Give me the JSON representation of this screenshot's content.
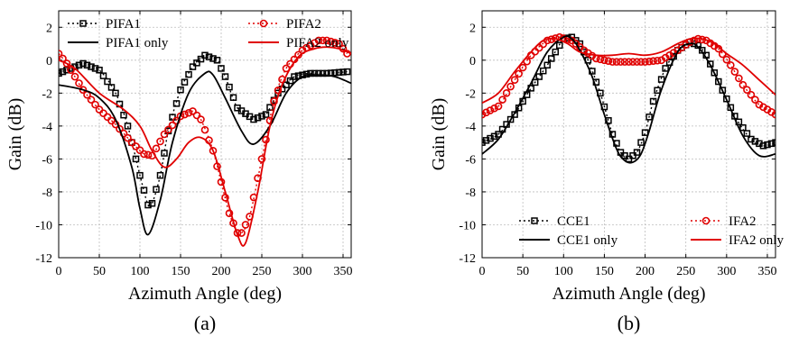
{
  "chart_data": [
    {
      "id": "a",
      "type": "line",
      "caption": "(a)",
      "xlabel": "Azimuth Angle (deg)",
      "ylabel": "Gain (dB)",
      "xlim": [
        0,
        360
      ],
      "ylim": [
        -12,
        3
      ],
      "xticks": [
        0,
        50,
        100,
        150,
        200,
        250,
        300,
        350
      ],
      "yticks": [
        -12,
        -10,
        -8,
        -6,
        -4,
        -2,
        0,
        2
      ],
      "grid": true,
      "legend_position": "top",
      "series": [
        {
          "name": "PIFA1",
          "color": "#000000",
          "line": "dotted",
          "marker": "square",
          "x": [
            0,
            30,
            50,
            70,
            85,
            100,
            110,
            115,
            125,
            135,
            150,
            165,
            180,
            195,
            205,
            220,
            240,
            255,
            270,
            290,
            310,
            330,
            355
          ],
          "y": [
            -0.8,
            -0.2,
            -0.6,
            -2.0,
            -4.0,
            -7.0,
            -8.8,
            -8.7,
            -7.0,
            -4.3,
            -1.8,
            -0.4,
            0.3,
            0.0,
            -1.0,
            -2.9,
            -3.6,
            -3.3,
            -2.0,
            -1.0,
            -0.8,
            -0.8,
            -0.7
          ]
        },
        {
          "name": "PIFA2",
          "color": "#e00000",
          "line": "dotted",
          "marker": "circle",
          "x": [
            0,
            10,
            20,
            30,
            50,
            70,
            90,
            105,
            115,
            130,
            150,
            165,
            175,
            190,
            200,
            210,
            220,
            225,
            235,
            250,
            265,
            280,
            300,
            320,
            330,
            345,
            355
          ],
          "y": [
            0.4,
            -0.2,
            -1.0,
            -1.8,
            -3.0,
            -3.9,
            -5.0,
            -5.7,
            -5.8,
            -4.5,
            -3.4,
            -3.1,
            -3.6,
            -5.5,
            -7.4,
            -9.3,
            -10.5,
            -10.5,
            -9.5,
            -6.0,
            -2.5,
            -0.5,
            0.6,
            1.2,
            1.2,
            1.0,
            0.4
          ]
        },
        {
          "name": "PIFA1 only",
          "color": "#000000",
          "line": "solid",
          "marker": "none",
          "x": [
            0,
            30,
            50,
            70,
            90,
            100,
            110,
            125,
            140,
            160,
            180,
            190,
            205,
            225,
            240,
            260,
            280,
            300,
            320,
            340,
            360
          ],
          "y": [
            -1.5,
            -1.8,
            -2.3,
            -3.6,
            -6.5,
            -9.0,
            -10.6,
            -8.5,
            -5.0,
            -2.0,
            -0.8,
            -0.9,
            -2.3,
            -4.3,
            -5.1,
            -4.0,
            -2.0,
            -1.0,
            -0.9,
            -1.0,
            -1.4
          ]
        },
        {
          "name": "PIFA2 only",
          "color": "#e00000",
          "line": "solid",
          "marker": "none",
          "x": [
            0,
            20,
            50,
            80,
            100,
            115,
            130,
            145,
            160,
            175,
            190,
            205,
            220,
            230,
            245,
            260,
            275,
            295,
            315,
            330,
            345,
            360
          ],
          "y": [
            0.0,
            -0.5,
            -2.0,
            -3.0,
            -4.0,
            -5.5,
            -6.5,
            -6.0,
            -5.0,
            -4.7,
            -5.5,
            -8.0,
            -10.6,
            -11.1,
            -8.0,
            -4.0,
            -1.5,
            0.2,
            0.7,
            0.8,
            0.7,
            0.4
          ]
        }
      ]
    },
    {
      "id": "b",
      "type": "line",
      "caption": "(b)",
      "xlabel": "Azimuth Angle (deg)",
      "ylabel": "Gain (dB)",
      "xlim": [
        0,
        360
      ],
      "ylim": [
        -12,
        3
      ],
      "xticks": [
        0,
        50,
        100,
        150,
        200,
        250,
        300,
        350
      ],
      "yticks": [
        -12,
        -10,
        -8,
        -6,
        -4,
        -2,
        0,
        2
      ],
      "grid": true,
      "legend_position": "bottom",
      "series": [
        {
          "name": "CCE1",
          "color": "#000000",
          "line": "dotted",
          "marker": "square",
          "x": [
            0,
            20,
            40,
            60,
            80,
            100,
            110,
            120,
            130,
            145,
            160,
            170,
            180,
            190,
            200,
            210,
            225,
            240,
            255,
            265,
            275,
            290,
            310,
            330,
            345,
            360
          ],
          "y": [
            -5.0,
            -4.5,
            -3.3,
            -1.7,
            -0.3,
            1.3,
            1.4,
            1.0,
            0.0,
            -2.0,
            -4.5,
            -5.6,
            -6.0,
            -5.6,
            -4.4,
            -2.5,
            -0.5,
            0.6,
            1.1,
            0.9,
            0.3,
            -1.3,
            -3.4,
            -4.8,
            -5.2,
            -5.0
          ]
        },
        {
          "name": "IFA2",
          "color": "#e00000",
          "line": "dotted",
          "marker": "circle",
          "x": [
            0,
            20,
            40,
            60,
            80,
            95,
            110,
            125,
            140,
            160,
            180,
            200,
            220,
            240,
            255,
            265,
            275,
            290,
            305,
            320,
            340,
            360
          ],
          "y": [
            -3.3,
            -2.8,
            -1.2,
            0.3,
            1.2,
            1.4,
            1.2,
            0.6,
            0.1,
            -0.1,
            -0.1,
            -0.1,
            0.0,
            0.6,
            1.1,
            1.3,
            1.2,
            0.7,
            -0.3,
            -1.5,
            -2.7,
            -3.3
          ]
        },
        {
          "name": "CCE1 only",
          "color": "#000000",
          "line": "solid",
          "marker": "none",
          "x": [
            0,
            20,
            40,
            60,
            80,
            100,
            110,
            120,
            135,
            150,
            165,
            175,
            185,
            195,
            205,
            220,
            240,
            255,
            265,
            280,
            300,
            320,
            340,
            360
          ],
          "y": [
            -5.7,
            -4.8,
            -3.2,
            -1.4,
            0.5,
            1.4,
            1.3,
            0.6,
            -1.0,
            -3.3,
            -5.4,
            -6.1,
            -6.2,
            -5.7,
            -4.3,
            -1.8,
            0.5,
            1.0,
            0.8,
            -0.3,
            -2.4,
            -4.6,
            -5.8,
            -5.7
          ]
        },
        {
          "name": "IFA2 only",
          "color": "#e00000",
          "line": "solid",
          "marker": "none",
          "x": [
            0,
            20,
            40,
            60,
            75,
            90,
            105,
            120,
            140,
            160,
            180,
            200,
            220,
            240,
            255,
            270,
            285,
            300,
            320,
            340,
            360
          ],
          "y": [
            -2.6,
            -2.0,
            -0.7,
            0.5,
            1.2,
            1.3,
            1.0,
            0.5,
            0.3,
            0.3,
            0.4,
            0.3,
            0.5,
            1.0,
            1.3,
            1.3,
            1.0,
            0.4,
            -0.3,
            -1.2,
            -2.1
          ]
        }
      ]
    }
  ]
}
